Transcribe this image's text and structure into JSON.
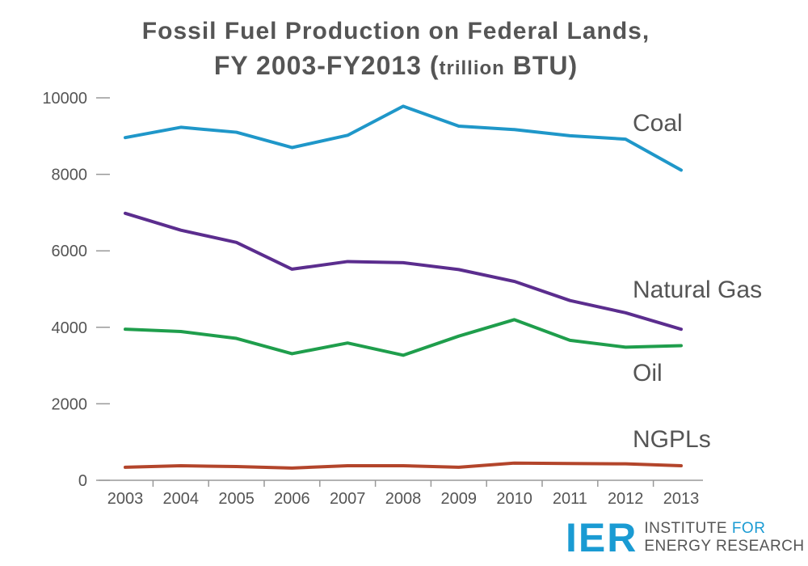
{
  "chart_data": {
    "type": "line",
    "title_line1": "Fossil Fuel Production on Federal Lands,",
    "title_line2_main": "FY 2003-FY2013 (",
    "title_line2_small": "trillion",
    "title_line2_end": " BTU)",
    "categories": [
      "2003",
      "2004",
      "2005",
      "2006",
      "2007",
      "2008",
      "2009",
      "2010",
      "2011",
      "2012",
      "2013"
    ],
    "ylim": [
      0,
      10000
    ],
    "yticks": [
      0,
      2000,
      4000,
      6000,
      8000,
      10000
    ],
    "grid": false,
    "legend": "labels at line ends",
    "series": [
      {
        "name": "Coal",
        "color": "#1f97c9",
        "values": [
          8960,
          9230,
          9100,
          8700,
          9020,
          9780,
          9260,
          9170,
          9010,
          8920,
          8110
        ]
      },
      {
        "name": "Natural Gas",
        "color": "#5b2d8e",
        "values": [
          6980,
          6540,
          6220,
          5520,
          5720,
          5690,
          5510,
          5200,
          4700,
          4380,
          3950
        ]
      },
      {
        "name": "Oil",
        "color": "#1f9e4c",
        "values": [
          3950,
          3890,
          3710,
          3310,
          3590,
          3270,
          3770,
          4200,
          3660,
          3480,
          3520
        ]
      },
      {
        "name": "NGPLs",
        "color": "#b3452b",
        "values": [
          340,
          380,
          360,
          320,
          380,
          380,
          340,
          450,
          440,
          430,
          380
        ]
      }
    ]
  },
  "logo": {
    "mark": "IER",
    "line1_a": "INSTITUTE ",
    "line1_b": "FOR",
    "line2": "ENERGY RESEARCH"
  }
}
